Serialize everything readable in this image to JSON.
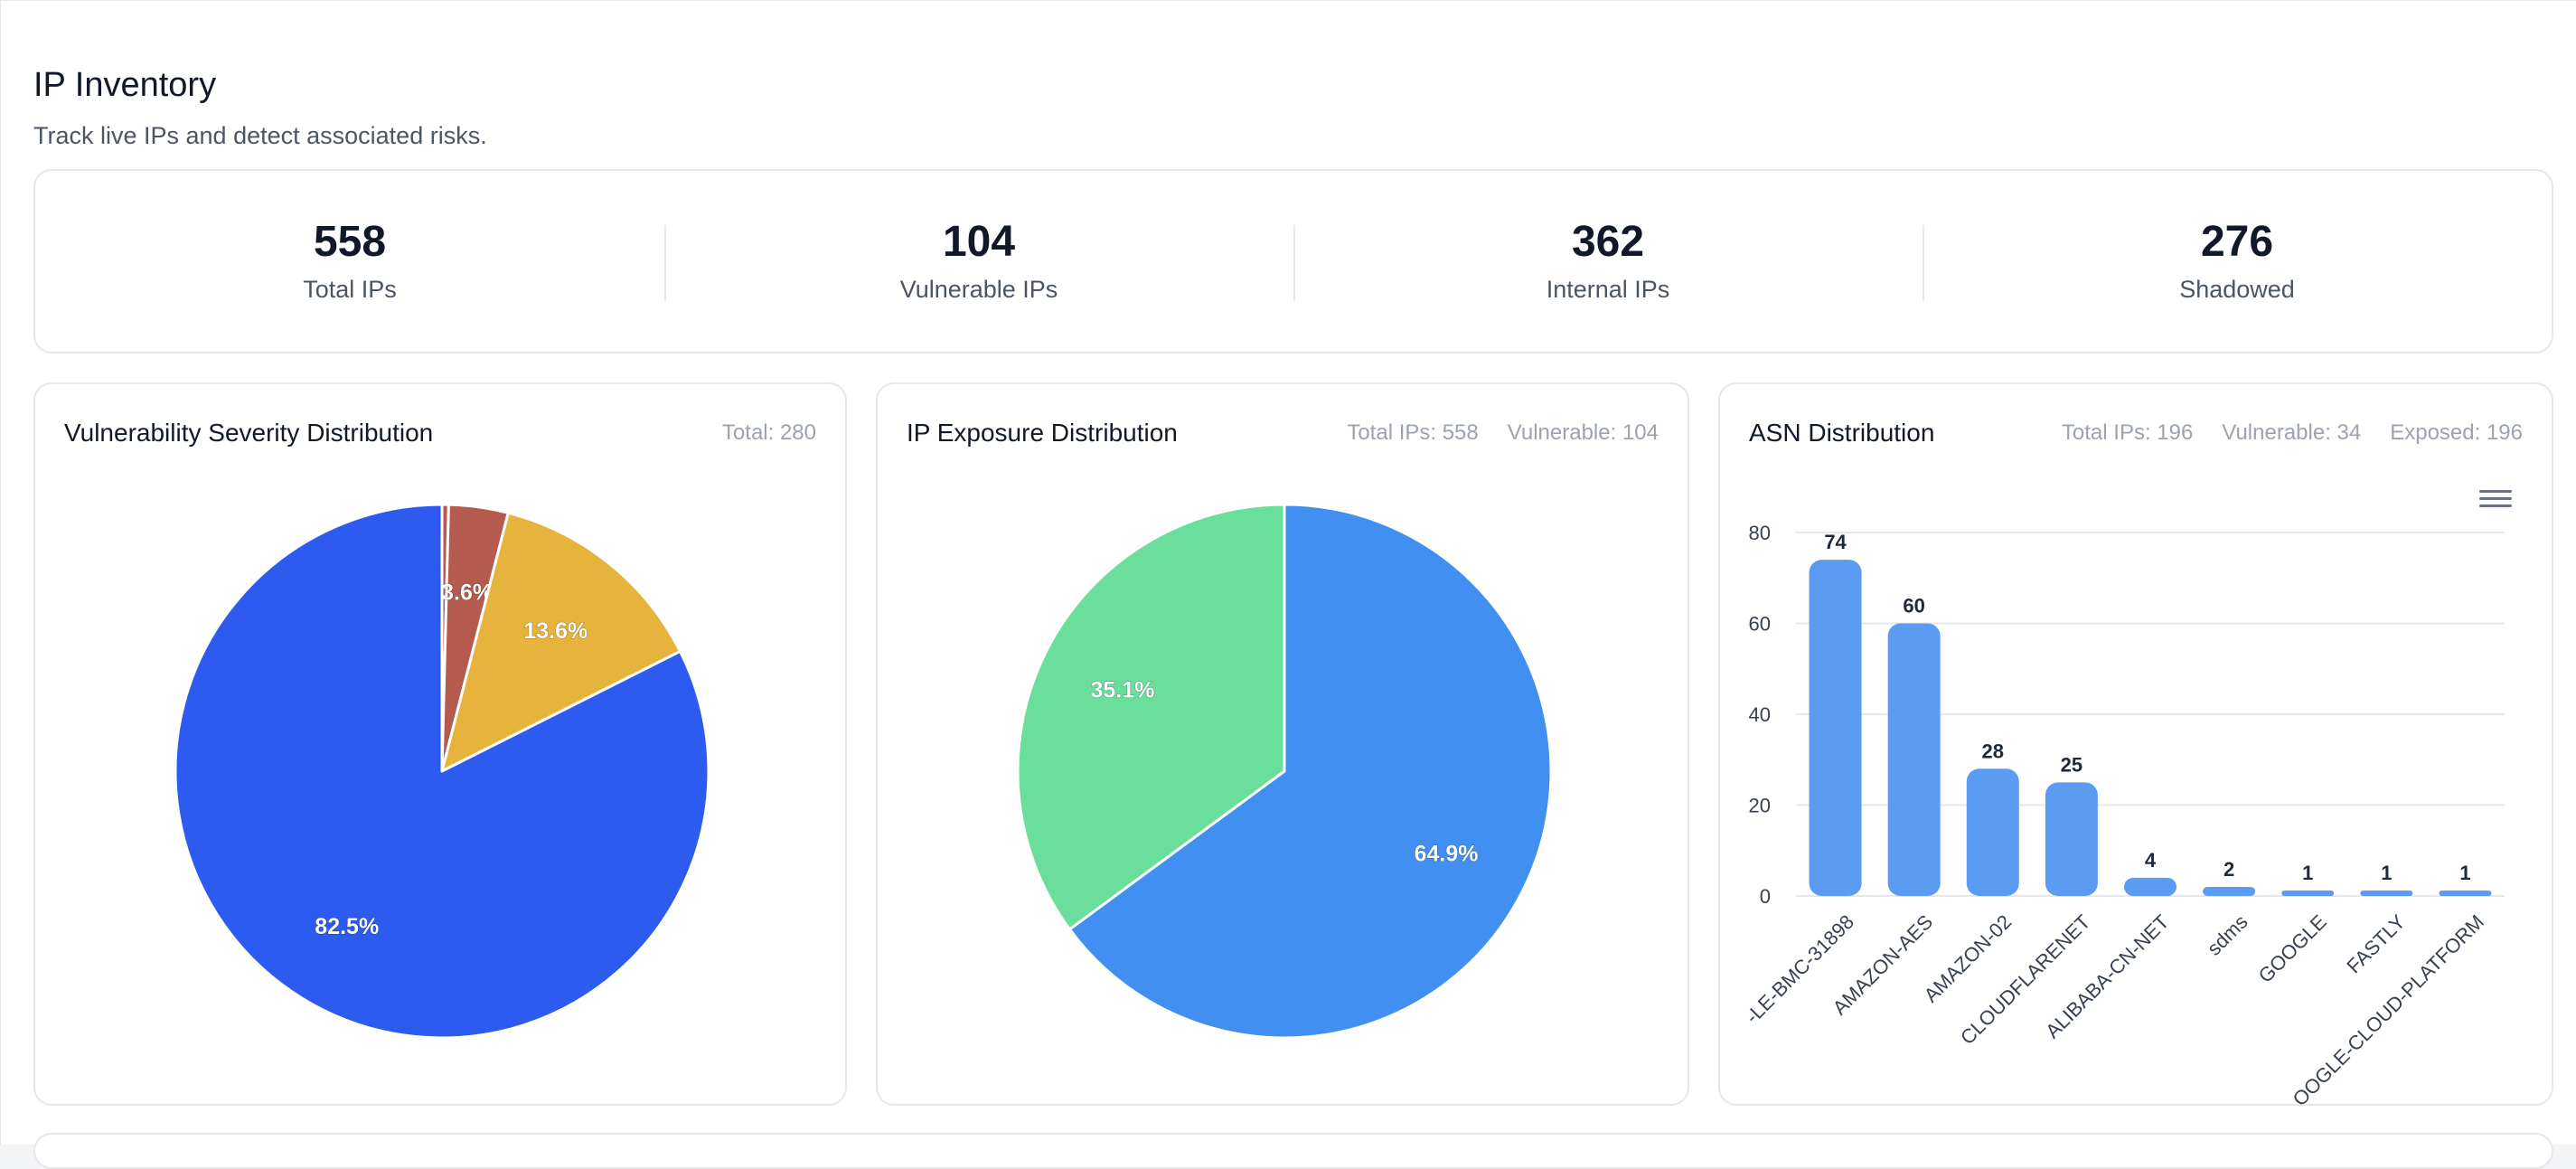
{
  "header": {
    "title": "IP Inventory",
    "subtitle": "Track live IPs and detect associated risks."
  },
  "stats": [
    {
      "value": "558",
      "label": "Total IPs"
    },
    {
      "value": "104",
      "label": "Vulnerable IPs"
    },
    {
      "value": "362",
      "label": "Internal IPs"
    },
    {
      "value": "276",
      "label": "Shadowed"
    }
  ],
  "cards": {
    "severity": {
      "title": "Vulnerability Severity Distribution",
      "meta": [
        "Total: 280"
      ]
    },
    "exposure": {
      "title": "IP Exposure Distribution",
      "meta": [
        "Total IPs: 558",
        "Vulnerable: 104"
      ]
    },
    "asn": {
      "title": "ASN Distribution",
      "meta": [
        "Total IPs: 196",
        "Vulnerable: 34",
        "Exposed: 196"
      ]
    }
  },
  "icons": {
    "menu": "hamburger-menu-icon"
  },
  "chart_data": [
    {
      "type": "pie",
      "values": [
        0.4,
        3.6,
        13.6,
        82.5
      ],
      "labels": [
        "",
        "3.6%",
        "13.6%",
        "82.5%"
      ],
      "colors": [
        "#c2554a",
        "#b45a4e",
        "#e6b33d",
        "#2d5bf0"
      ]
    },
    {
      "type": "pie",
      "values": [
        64.9,
        35.1
      ],
      "labels": [
        "64.9%",
        "35.1%"
      ],
      "colors": [
        "#418ff0",
        "#69df9b"
      ]
    },
    {
      "type": "bar",
      "categories": [
        "-LE-BMC-31898",
        "AMAZON-AES",
        "AMAZON-02",
        "CLOUDFLARENET",
        "ALIBABA-CN-NET",
        "sdms",
        "GOOGLE",
        "FASTLY",
        "OOGLE-CLOUD-PLATFORM"
      ],
      "values": [
        74,
        60,
        28,
        25,
        4,
        2,
        1,
        1,
        1
      ],
      "ylim": [
        0,
        80
      ],
      "yticks": [
        "0",
        "20",
        "40",
        "60",
        "80"
      ],
      "grid": true,
      "color": "#5b9cf2"
    }
  ]
}
